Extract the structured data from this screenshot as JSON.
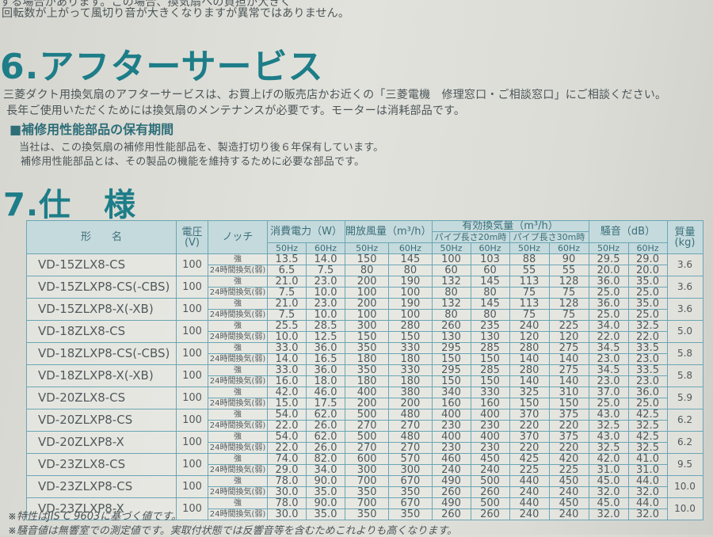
{
  "intro_lines": [
    "する場合があります。この場合、換気扇への負担が大きく",
    "回転数が上がって風切り音が大きくなりますが異常ではありません。"
  ],
  "section6": {
    "title": "6.アフターサービス",
    "paragraph": [
      "三菱ダクト用換気扇のアフターサービスは、お買上げの販売店かお近くの「三菱電機　修理窓口・ご相談窓口」にご相談ください。",
      "長年ご使用いただくためには換気扇のメンテナンスが必要です。モーターは消耗部品です。"
    ],
    "subheading": "■補修用性能部品の保有期間",
    "sub_paragraph": [
      "当社は、この換気扇の補修用性能部品を、製造打切り後６年保有しています。",
      "補修用性能部品とは、その製品の機能を維持するために必要な部品です。"
    ]
  },
  "section7": {
    "title": "7.仕　様",
    "table": {
      "headers": {
        "model": "形　　名",
        "voltage": "電圧\n(V)",
        "notch": "ノッチ",
        "power": "消費電力（W）",
        "open_airflow": "開放風量（m³/h）",
        "effective": "有効換気量（m³/h）",
        "pipe20": "パイプ長さ20m時",
        "pipe30": "パイプ長さ30m時",
        "noise": "騒音（dB）",
        "weight": "質量\n(kg)",
        "hz50": "50Hz",
        "hz60": "60Hz"
      },
      "notch_labels": [
        "強",
        "24時間換気(弱)"
      ],
      "rows": [
        {
          "model": "VD-15ZLX8-CS",
          "voltage": "100",
          "weight": "3.6",
          "strong": [
            "13.5",
            "14.0",
            "150",
            "145",
            "100",
            "103",
            "88",
            "90",
            "29.5",
            "29.0"
          ],
          "weak": [
            "6.5",
            "7.5",
            "80",
            "80",
            "60",
            "60",
            "55",
            "55",
            "20.0",
            "20.0"
          ]
        },
        {
          "model": "VD-15ZLXP8-CS(-CBS)",
          "voltage": "100",
          "weight": "3.6",
          "strong": [
            "21.0",
            "23.0",
            "200",
            "190",
            "132",
            "145",
            "113",
            "128",
            "36.0",
            "35.0"
          ],
          "weak": [
            "7.5",
            "10.0",
            "100",
            "100",
            "80",
            "80",
            "75",
            "75",
            "25.0",
            "25.0"
          ]
        },
        {
          "model": "VD-15ZLXP8-X(-XB)",
          "voltage": "100",
          "weight": "3.6",
          "strong": [
            "21.0",
            "23.0",
            "200",
            "190",
            "132",
            "145",
            "113",
            "128",
            "36.0",
            "35.0"
          ],
          "weak": [
            "7.5",
            "10.0",
            "100",
            "100",
            "80",
            "80",
            "75",
            "75",
            "25.0",
            "25.0"
          ]
        },
        {
          "model": "VD-18ZLX8-CS",
          "voltage": "100",
          "weight": "5.0",
          "strong": [
            "25.5",
            "28.5",
            "300",
            "280",
            "260",
            "235",
            "240",
            "225",
            "34.0",
            "32.5"
          ],
          "weak": [
            "10.0",
            "12.5",
            "150",
            "150",
            "130",
            "130",
            "120",
            "120",
            "22.0",
            "22.0"
          ]
        },
        {
          "model": "VD-18ZLXP8-CS(-CBS)",
          "voltage": "100",
          "weight": "5.8",
          "strong": [
            "33.0",
            "36.0",
            "350",
            "330",
            "295",
            "285",
            "280",
            "275",
            "34.5",
            "33.5"
          ],
          "weak": [
            "14.0",
            "16.5",
            "180",
            "180",
            "150",
            "150",
            "140",
            "140",
            "23.0",
            "23.0"
          ]
        },
        {
          "model": "VD-18ZLXP8-X(-XB)",
          "voltage": "100",
          "weight": "5.8",
          "strong": [
            "33.0",
            "36.0",
            "350",
            "330",
            "295",
            "285",
            "280",
            "275",
            "34.5",
            "33.5"
          ],
          "weak": [
            "16.0",
            "18.0",
            "180",
            "180",
            "150",
            "150",
            "140",
            "140",
            "23.0",
            "23.0"
          ]
        },
        {
          "model": "VD-20ZLX8-CS",
          "voltage": "100",
          "weight": "5.9",
          "strong": [
            "42.0",
            "46.0",
            "400",
            "380",
            "340",
            "330",
            "325",
            "310",
            "37.0",
            "36.0"
          ],
          "weak": [
            "15.0",
            "17.5",
            "200",
            "200",
            "160",
            "160",
            "150",
            "150",
            "25.0",
            "25.0"
          ]
        },
        {
          "model": "VD-20ZLXP8-CS",
          "voltage": "100",
          "weight": "6.2",
          "strong": [
            "54.0",
            "62.0",
            "500",
            "480",
            "400",
            "400",
            "370",
            "375",
            "43.0",
            "42.5"
          ],
          "weak": [
            "22.0",
            "26.0",
            "270",
            "270",
            "230",
            "230",
            "220",
            "220",
            "32.5",
            "32.5"
          ]
        },
        {
          "model": "VD-20ZLXP8-X",
          "voltage": "100",
          "weight": "6.2",
          "strong": [
            "54.0",
            "62.0",
            "500",
            "480",
            "400",
            "400",
            "370",
            "375",
            "43.0",
            "42.5"
          ],
          "weak": [
            "22.0",
            "26.0",
            "270",
            "270",
            "230",
            "230",
            "220",
            "220",
            "32.5",
            "32.5"
          ]
        },
        {
          "model": "VD-23ZLX8-CS",
          "voltage": "100",
          "weight": "9.5",
          "strong": [
            "74.0",
            "82.0",
            "600",
            "570",
            "460",
            "450",
            "425",
            "420",
            "42.0",
            "41.0"
          ],
          "weak": [
            "29.0",
            "34.0",
            "300",
            "300",
            "240",
            "240",
            "225",
            "225",
            "31.0",
            "31.0"
          ]
        },
        {
          "model": "VD-23ZLXP8-CS",
          "voltage": "100",
          "weight": "10.0",
          "strong": [
            "78.0",
            "90.0",
            "700",
            "670",
            "490",
            "500",
            "440",
            "450",
            "45.0",
            "44.0"
          ],
          "weak": [
            "30.0",
            "35.0",
            "350",
            "350",
            "260",
            "260",
            "240",
            "240",
            "32.0",
            "32.0"
          ]
        },
        {
          "model": "VD-23ZLXP8-X",
          "voltage": "100",
          "weight": "10.0",
          "strong": [
            "78.0",
            "90.0",
            "700",
            "670",
            "490",
            "500",
            "440",
            "450",
            "45.0",
            "44.0"
          ],
          "weak": [
            "30.0",
            "35.0",
            "350",
            "350",
            "260",
            "260",
            "240",
            "240",
            "32.0",
            "32.0"
          ]
        }
      ]
    },
    "notes": [
      "※特性はJIS C 9603に基づく値です。",
      "※騒音値は無響室での測定値です。実取付状態では反響音等を含むためこれよりも高くなります。"
    ]
  }
}
